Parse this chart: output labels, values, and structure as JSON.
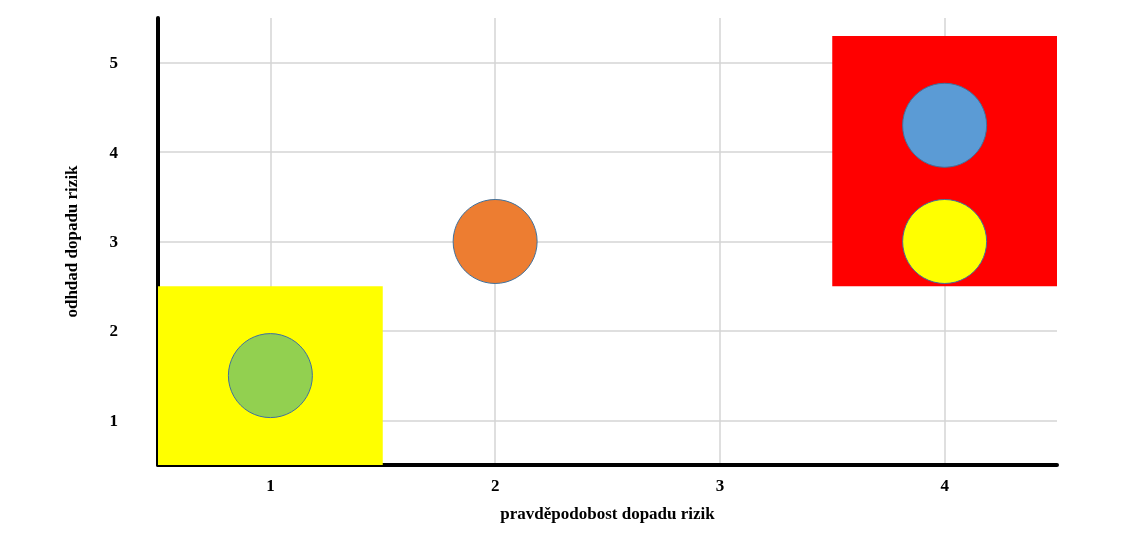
{
  "chart_data": {
    "type": "scatter",
    "xlabel": "pravděpodobost dopadu rizik",
    "ylabel": "odhdad dopadu rizik",
    "xlim": [
      0.5,
      4.5
    ],
    "xticks": [
      1,
      2,
      3,
      4
    ],
    "ylim": [
      0.5,
      5.5
    ],
    "yticks": [
      1,
      2,
      3,
      4,
      5
    ],
    "grid": true,
    "marker": "circle",
    "series": [
      {
        "type": "bar",
        "color": "#ffff00",
        "x": [
          1
        ],
        "base": [
          0.5
        ],
        "values": [
          2
        ]
      },
      {
        "type": "bar",
        "color": "#ff0000",
        "x": [
          4
        ],
        "base": [
          2.5
        ],
        "values": [
          2.8
        ]
      },
      {
        "x": [
          1,
          2,
          4,
          4
        ],
        "values": [
          1.5,
          3,
          4.3,
          3
        ],
        "colors": [
          "#92d050",
          "#ed7d31",
          "#5b9bd5",
          "#ffff00"
        ]
      }
    ]
  }
}
